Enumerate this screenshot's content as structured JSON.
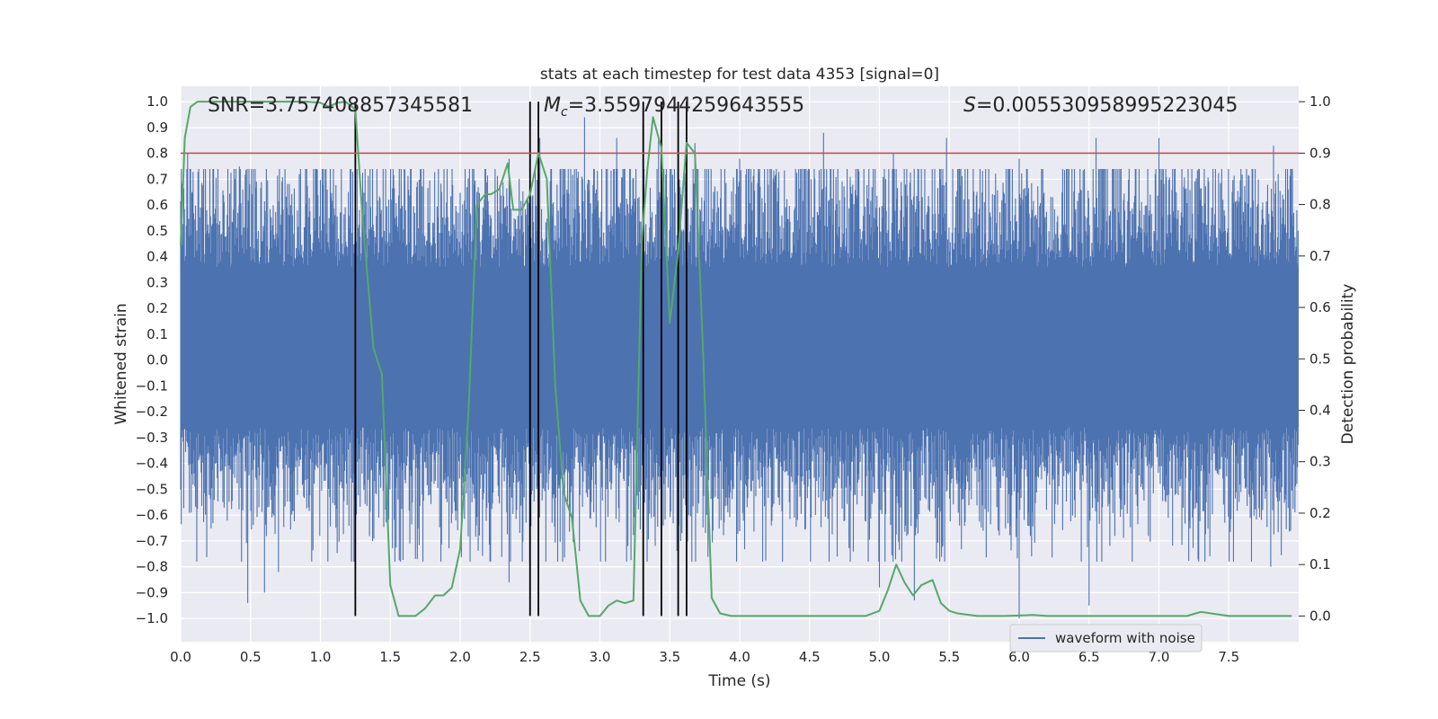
{
  "chart_data": {
    "type": "line",
    "title": "stats at each timestep for test data 4353 [signal=0]",
    "xlabel": "Time (s)",
    "ylabel_left": "Whitened strain",
    "ylabel_right": "Detection probability",
    "xlim": [
      0.0,
      8.0
    ],
    "ylim_left": [
      -1.09,
      1.06
    ],
    "ylim_right": [
      -0.05,
      1.03
    ],
    "x_ticks": [
      "0.0",
      "0.5",
      "1.0",
      "1.5",
      "2.0",
      "2.5",
      "3.0",
      "3.5",
      "4.0",
      "4.5",
      "5.0",
      "5.5",
      "6.0",
      "6.5",
      "7.0",
      "7.5"
    ],
    "y_ticks_left": [
      "1.0",
      "0.9",
      "0.8",
      "0.7",
      "0.6",
      "0.5",
      "0.4",
      "0.3",
      "0.2",
      "0.1",
      "0.0",
      "-0.1",
      "-0.2",
      "-0.3",
      "-0.4",
      "-0.5",
      "-0.6",
      "-0.7",
      "-0.8",
      "-0.9",
      "-1.0"
    ],
    "y_ticks_right": [
      "1.0",
      "0.9",
      "0.8",
      "0.7",
      "0.6",
      "0.5",
      "0.4",
      "0.3",
      "0.2",
      "0.1",
      "0.0"
    ],
    "annotations": {
      "snr": "SNR=3.757408857345581",
      "mc": "=3.5597944259643555",
      "mc_symbol": "M",
      "mc_sub": "c",
      "s": "=0.005530958995223045",
      "s_symbol": "S"
    },
    "threshold": 0.9,
    "threshold_color": "#c44e52",
    "vertical_markers": [
      1.25,
      2.5,
      2.56,
      3.31,
      3.44,
      3.56,
      3.62
    ],
    "waveform": {
      "name": "waveform with noise",
      "color": "#4c72b0",
      "dense_band": [
        -0.26,
        0.36
      ],
      "typical_amplitude": 0.55,
      "peaks_up": [
        [
          0.05,
          0.8
        ],
        [
          0.42,
          0.75
        ],
        [
          1.15,
          0.74
        ],
        [
          1.25,
          0.87
        ],
        [
          2.25,
          0.74
        ],
        [
          2.35,
          0.78
        ],
        [
          2.57,
          0.86
        ],
        [
          2.89,
          0.94
        ],
        [
          3.12,
          0.86
        ],
        [
          3.42,
          0.86
        ],
        [
          3.68,
          0.84
        ],
        [
          4.0,
          0.78
        ],
        [
          4.6,
          0.88
        ],
        [
          5.1,
          0.8
        ],
        [
          5.3,
          0.74
        ],
        [
          5.48,
          0.86
        ],
        [
          6.0,
          0.78
        ],
        [
          6.55,
          0.86
        ],
        [
          7.0,
          0.86
        ],
        [
          7.82,
          0.83
        ]
      ],
      "peaks_down": [
        [
          0.48,
          -0.94
        ],
        [
          0.6,
          -0.9
        ],
        [
          0.7,
          -0.82
        ],
        [
          1.25,
          -0.6
        ],
        [
          2.35,
          -0.86
        ],
        [
          2.56,
          -0.95
        ],
        [
          3.2,
          -0.72
        ],
        [
          5.0,
          -0.88
        ],
        [
          5.25,
          -0.93
        ],
        [
          6.0,
          -1.0
        ],
        [
          6.5,
          -0.95
        ],
        [
          7.8,
          -0.8
        ]
      ]
    },
    "probability": {
      "color": "#55a868",
      "x": [
        0.0,
        0.03,
        0.07,
        0.12,
        0.3,
        0.5,
        0.7,
        0.9,
        1.0,
        1.06,
        1.12,
        1.18,
        1.25,
        1.3,
        1.38,
        1.44,
        1.5,
        1.56,
        1.62,
        1.68,
        1.75,
        1.82,
        1.88,
        1.94,
        2.0,
        2.06,
        2.12,
        2.18,
        2.22,
        2.28,
        2.34,
        2.38,
        2.44,
        2.5,
        2.56,
        2.62,
        2.68,
        2.74,
        2.8,
        2.86,
        2.92,
        3.0,
        3.06,
        3.12,
        3.18,
        3.24,
        3.3,
        3.34,
        3.38,
        3.44,
        3.5,
        3.56,
        3.62,
        3.68,
        3.74,
        3.8,
        3.86,
        3.94,
        4.1,
        4.3,
        4.5,
        4.7,
        4.9,
        5.0,
        5.06,
        5.12,
        5.18,
        5.24,
        5.3,
        5.38,
        5.44,
        5.5,
        5.56,
        5.7,
        5.9,
        6.1,
        6.2,
        6.4,
        6.7,
        7.0,
        7.2,
        7.3,
        7.5,
        7.7,
        7.95
      ],
      "y": [
        0.72,
        0.93,
        0.99,
        1.0,
        1.0,
        1.0,
        1.0,
        1.0,
        0.998,
        0.99,
        0.998,
        1.0,
        0.985,
        0.78,
        0.52,
        0.47,
        0.06,
        0.0,
        0.0,
        0.0,
        0.015,
        0.04,
        0.04,
        0.055,
        0.13,
        0.4,
        0.8,
        0.82,
        0.82,
        0.83,
        0.88,
        0.79,
        0.79,
        0.82,
        0.9,
        0.85,
        0.45,
        0.24,
        0.19,
        0.03,
        0.0,
        0.0,
        0.02,
        0.03,
        0.025,
        0.03,
        0.73,
        0.87,
        0.97,
        0.91,
        0.57,
        0.71,
        0.92,
        0.9,
        0.5,
        0.035,
        0.005,
        0.0,
        0.0,
        0.0,
        0.0,
        0.0,
        0.0,
        0.01,
        0.05,
        0.1,
        0.065,
        0.04,
        0.06,
        0.07,
        0.025,
        0.01,
        0.005,
        0.0,
        0.0,
        0.002,
        0.0,
        0.0,
        0.0,
        0.0,
        0.0,
        0.008,
        0.0,
        0.0,
        0.0
      ]
    },
    "legend": {
      "label": "waveform with noise",
      "placement": "lower-right"
    }
  }
}
